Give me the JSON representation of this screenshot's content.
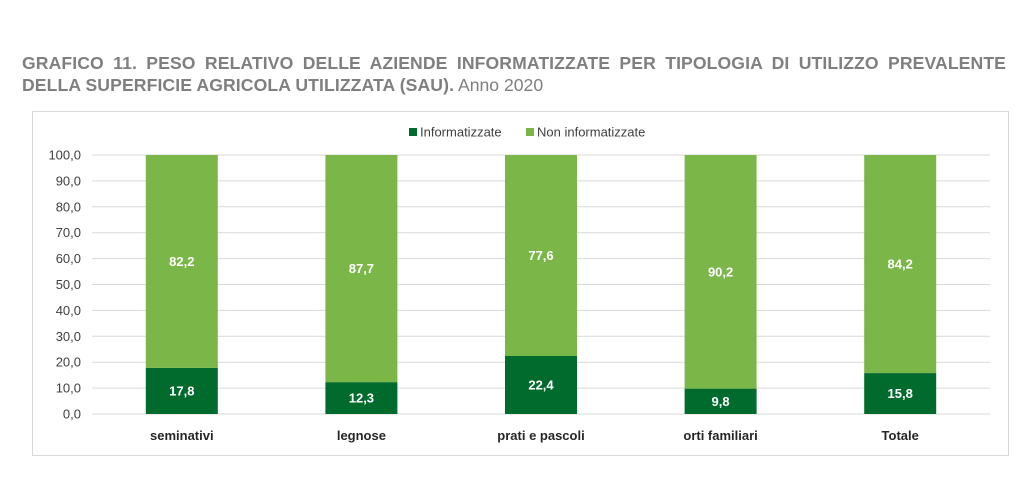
{
  "title": {
    "bold": "GRAFICO 11. PESO RELATIVO DELLE AZIENDE INFORMATIZZATE PER TIPOLOGIA DI UTILIZZO PREVALENTE DELLA SUPERFICIE AGRICOLA UTILIZZATA (SAU).",
    "normal": "Anno 2020"
  },
  "chart_data": {
    "type": "bar",
    "stacked": true,
    "categories": [
      "seminativi",
      "legnose",
      "prati e pascoli",
      "orti familiari",
      "Totale"
    ],
    "series": [
      {
        "name": "Informatizzate",
        "color": "#006b2c",
        "values": [
          17.8,
          12.3,
          22.4,
          9.8,
          15.8
        ],
        "labels": [
          "17,8",
          "12,3",
          "22,4",
          "9,8",
          "15,8"
        ]
      },
      {
        "name": "Non informatizzate",
        "color": "#7ab648",
        "values": [
          82.2,
          87.7,
          77.6,
          90.2,
          84.2
        ],
        "labels": [
          "82,2",
          "87,7",
          "77,6",
          "90,2",
          "84,2"
        ]
      }
    ],
    "ylim": [
      0,
      100
    ],
    "yticks": [
      "0,0",
      "10,0",
      "20,0",
      "30,0",
      "40,0",
      "50,0",
      "60,0",
      "70,0",
      "80,0",
      "90,0",
      "100,0"
    ],
    "xlabel": "",
    "ylabel": "",
    "grid": true,
    "legend_position": "top"
  }
}
